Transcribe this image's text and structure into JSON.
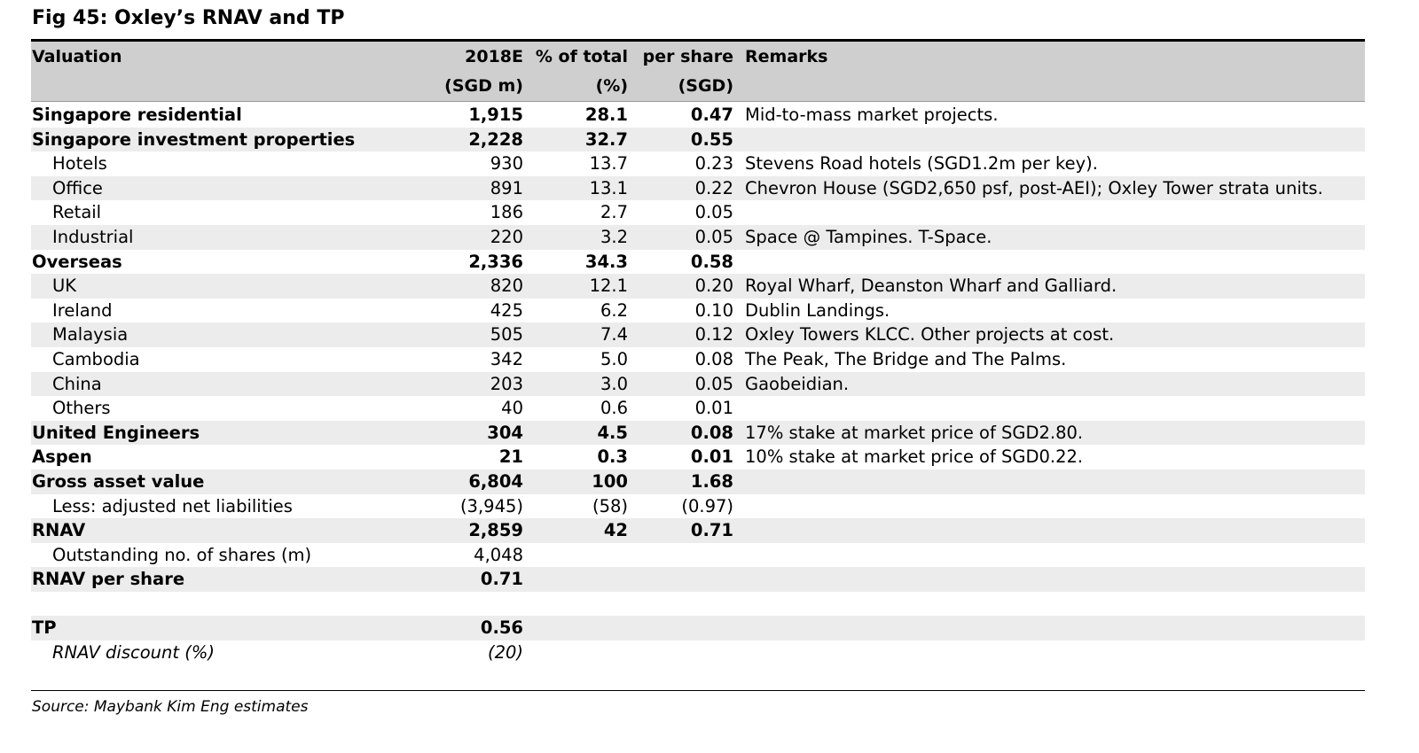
{
  "title": "Fig 45: Oxley’s RNAV and TP",
  "header": {
    "valuation": "Valuation",
    "col_2018e": "2018E",
    "col_2018e_unit": "(SGD m)",
    "col_pct": "% of total",
    "col_pct_unit": "(%)",
    "col_ps": "per share",
    "col_ps_unit": "(SGD)",
    "remarks": "Remarks"
  },
  "rows": [
    {
      "label": "Singapore residential",
      "v2018e": "1,915",
      "pct": "28.1",
      "ps": "0.47",
      "remarks": "Mid-to-mass market projects."
    },
    {
      "label": "Singapore investment properties",
      "v2018e": "2,228",
      "pct": "32.7",
      "ps": "0.55",
      "remarks": ""
    },
    {
      "label": "Hotels",
      "v2018e": "930",
      "pct": "13.7",
      "ps": "0.23",
      "remarks": "Stevens Road hotels (SGD1.2m per key)."
    },
    {
      "label": "Office",
      "v2018e": "891",
      "pct": "13.1",
      "ps": "0.22",
      "remarks": "Chevron House (SGD2,650 psf, post-AEI); Oxley Tower strata units."
    },
    {
      "label": "Retail",
      "v2018e": "186",
      "pct": "2.7",
      "ps": "0.05",
      "remarks": ""
    },
    {
      "label": "Industrial",
      "v2018e": "220",
      "pct": "3.2",
      "ps": "0.05",
      "remarks": "Space @ Tampines. T-Space."
    },
    {
      "label": "Overseas",
      "v2018e": "2,336",
      "pct": "34.3",
      "ps": "0.58",
      "remarks": ""
    },
    {
      "label": "UK",
      "v2018e": "820",
      "pct": "12.1",
      "ps": "0.20",
      "remarks": "Royal Wharf, Deanston Wharf and Galliard."
    },
    {
      "label": "Ireland",
      "v2018e": "425",
      "pct": "6.2",
      "ps": "0.10",
      "remarks": "Dublin Landings."
    },
    {
      "label": "Malaysia",
      "v2018e": "505",
      "pct": "7.4",
      "ps": "0.12",
      "remarks": "Oxley Towers KLCC. Other projects at cost."
    },
    {
      "label": "Cambodia",
      "v2018e": "342",
      "pct": "5.0",
      "ps": "0.08",
      "remarks": "The Peak, The Bridge and The Palms."
    },
    {
      "label": "China",
      "v2018e": "203",
      "pct": "3.0",
      "ps": "0.05",
      "remarks": "Gaobeidian."
    },
    {
      "label": "Others",
      "v2018e": "40",
      "pct": "0.6",
      "ps": "0.01",
      "remarks": ""
    },
    {
      "label": "United Engineers",
      "v2018e": "304",
      "pct": "4.5",
      "ps": "0.08",
      "remarks": "17% stake at market price of SGD2.80."
    },
    {
      "label": "Aspen",
      "v2018e": "21",
      "pct": "0.3",
      "ps": "0.01",
      "remarks": "10% stake at market price of SGD0.22."
    },
    {
      "label": "Gross asset value",
      "v2018e": "6,804",
      "pct": "100",
      "ps": "1.68",
      "remarks": ""
    },
    {
      "label": "Less: adjusted net liabilities",
      "v2018e": "(3,945)",
      "pct": "(58)",
      "ps": "(0.97)",
      "remarks": ""
    },
    {
      "label": "RNAV",
      "v2018e": "2,859",
      "pct": "42",
      "ps": "0.71",
      "remarks": ""
    },
    {
      "label": "Outstanding no. of shares (m)",
      "v2018e": "4,048",
      "pct": "",
      "ps": "",
      "remarks": ""
    },
    {
      "label": "RNAV per share",
      "v2018e": "0.71",
      "pct": "",
      "ps": "",
      "remarks": ""
    },
    {
      "label": "",
      "v2018e": "",
      "pct": "",
      "ps": "",
      "remarks": ""
    },
    {
      "label": "TP",
      "v2018e": "0.56",
      "pct": "",
      "ps": "",
      "remarks": ""
    },
    {
      "label": "RNAV discount (%)",
      "v2018e": "(20)",
      "pct": "",
      "ps": "",
      "remarks": ""
    }
  ],
  "source": "Source: Maybank Kim Eng estimates",
  "colors": {
    "header_bg": "#cfcfcf",
    "shade_bg": "#ececec",
    "rule": "#000000"
  }
}
